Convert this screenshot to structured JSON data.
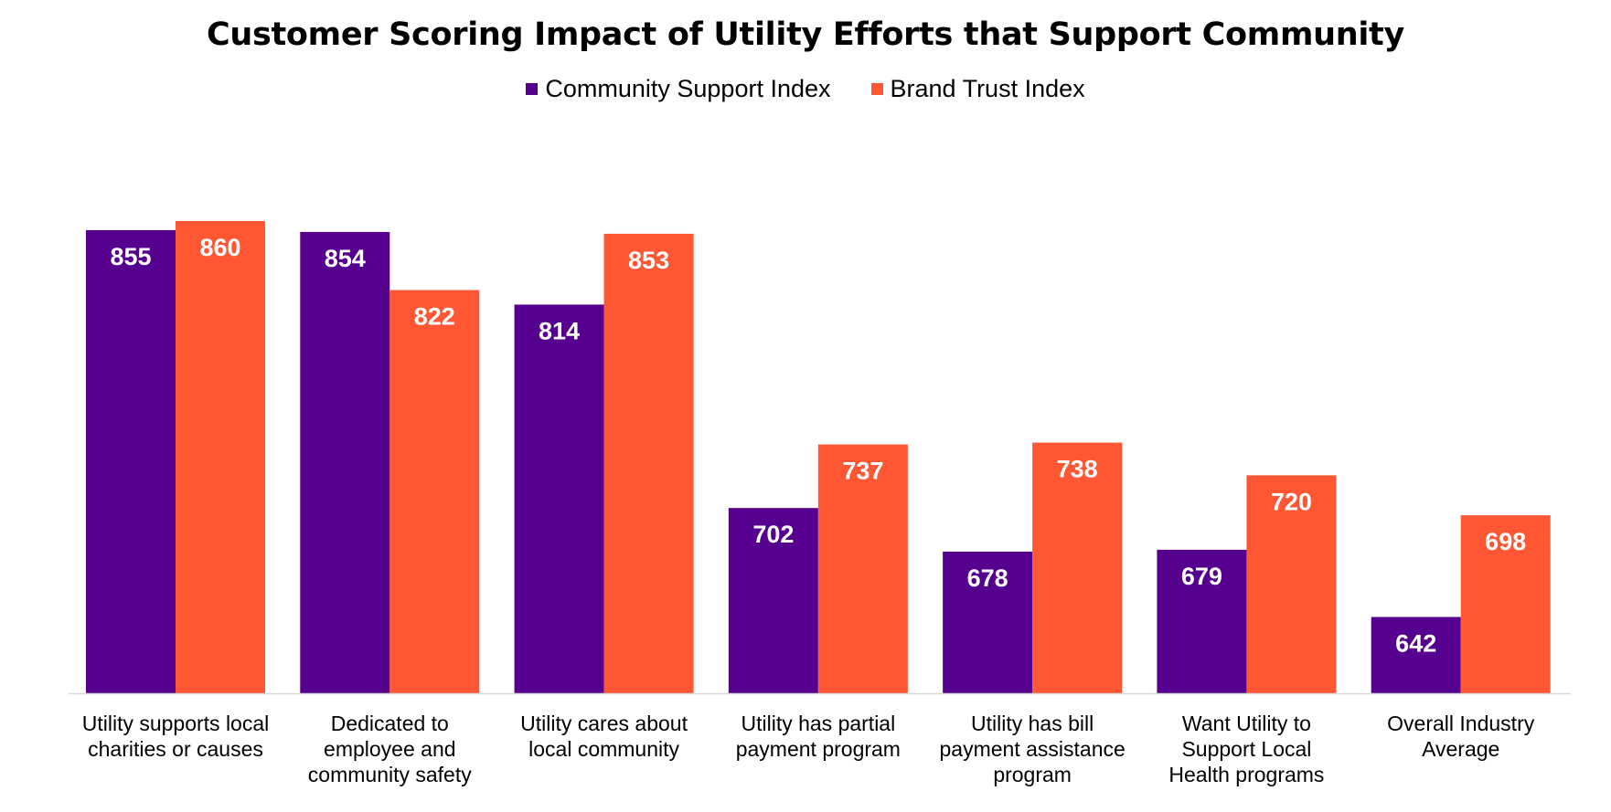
{
  "chart_data": {
    "type": "bar",
    "title": "Customer Scoring Impact of Utility Efforts that Support Community",
    "xlabel": "",
    "ylabel": "",
    "ylim": [
      600,
      880
    ],
    "grid": false,
    "legend_position": "top-center",
    "categories": [
      [
        "Utility supports local",
        "charities or causes"
      ],
      [
        "Dedicated to",
        "employee and",
        "community safety"
      ],
      [
        "Utility cares about",
        "local community"
      ],
      [
        "Utility has partial",
        "payment program"
      ],
      [
        "Utility has bill",
        "payment assistance",
        "program"
      ],
      [
        "Want Utility to",
        "Support Local",
        "Health programs"
      ],
      [
        "Overall Industry",
        "Average"
      ]
    ],
    "series": [
      {
        "name": "Community Support Index",
        "color": "#55008F",
        "values": [
          855,
          854,
          814,
          702,
          678,
          679,
          642
        ]
      },
      {
        "name": "Brand Trust Index",
        "color": "#FF5733",
        "values": [
          860,
          822,
          853,
          737,
          738,
          720,
          698
        ]
      }
    ]
  }
}
